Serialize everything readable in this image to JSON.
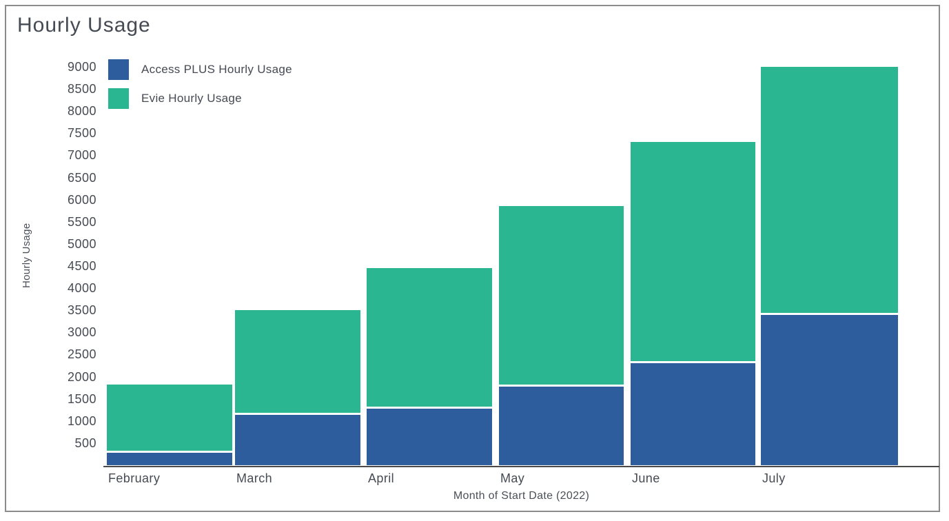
{
  "title": "Hourly Usage",
  "legend": {
    "items": [
      {
        "label": "Access PLUS Hourly Usage",
        "color": "#2d5d9c"
      },
      {
        "label": "Evie Hourly Usage",
        "color": "#29b690"
      }
    ]
  },
  "axes": {
    "y_label": "Hourly Usage",
    "x_label": "Month of Start Date (2022)"
  },
  "chart_data": {
    "type": "bar",
    "stacked": true,
    "title": "Hourly Usage",
    "xlabel": "Month of Start Date (2022)",
    "ylabel": "Hourly Usage",
    "categories": [
      "February",
      "March",
      "April",
      "May",
      "June",
      "July"
    ],
    "series": [
      {
        "name": "Access PLUS Hourly Usage",
        "color": "#2d5d9c",
        "values": [
          280,
          1130,
          1270,
          1770,
          2300,
          3400
        ]
      },
      {
        "name": "Evie Hourly Usage",
        "color": "#29b690",
        "values": [
          1540,
          2370,
          3180,
          4080,
          5000,
          5600
        ]
      }
    ],
    "totals": [
      1820,
      3500,
      4450,
      5850,
      7300,
      9000
    ],
    "ylim": [
      0,
      9000
    ],
    "yticks": [
      500,
      1000,
      1500,
      2000,
      2500,
      3000,
      3500,
      4000,
      4500,
      5000,
      5500,
      6000,
      6500,
      7000,
      7500,
      8000,
      8500,
      9000
    ],
    "grid": false,
    "legend_position": "top-left"
  }
}
